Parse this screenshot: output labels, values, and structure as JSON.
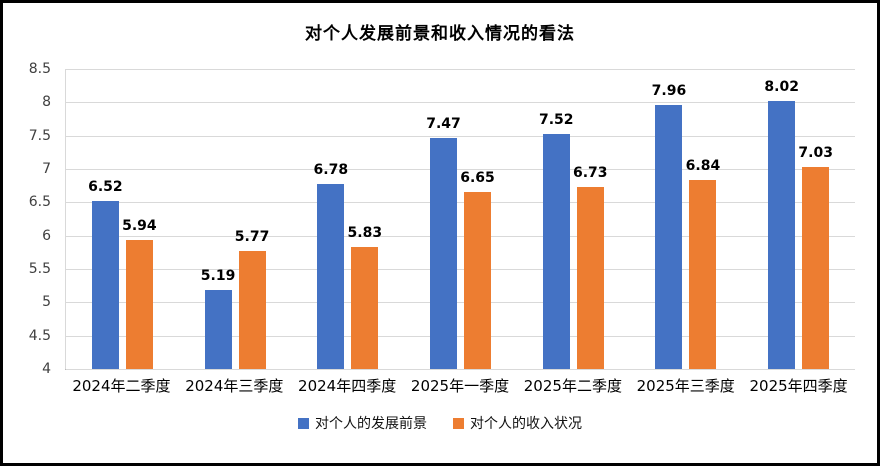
{
  "chart_data": {
    "type": "bar",
    "title": "对个人发展前景和收入情况的看法",
    "categories": [
      "2024年二季度",
      "2024年三季度",
      "2024年四季度",
      "2025年一季度",
      "2025年二季度",
      "2025年三季度",
      "2025年四季度"
    ],
    "series": [
      {
        "name": "对个人的发展前景",
        "color": "#4472C4",
        "values": [
          6.52,
          5.19,
          6.78,
          7.47,
          7.52,
          7.96,
          8.02
        ]
      },
      {
        "name": "对个人的收入状况",
        "color": "#ED7D31",
        "values": [
          5.94,
          5.77,
          5.83,
          6.65,
          6.73,
          6.84,
          7.03
        ]
      }
    ],
    "ylim": [
      4,
      8.5
    ],
    "ytick_step": 0.5,
    "grid": true,
    "legend_position": "bottom",
    "gridline_color": "#d9d9d9",
    "axis_line_color": "#9a9a9a"
  }
}
